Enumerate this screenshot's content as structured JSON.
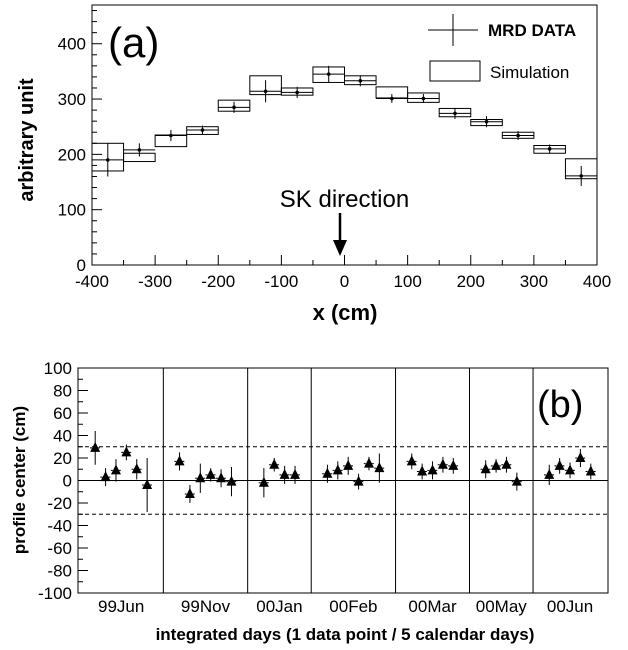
{
  "chart_data": [
    {
      "panel_label": "(a)",
      "type": "bar",
      "xlabel": "x (cm)",
      "ylabel": "arbitrary unit",
      "xlim": [
        -400,
        400
      ],
      "ylim": [
        0,
        470
      ],
      "x_ticks": [
        "-400",
        "-300",
        "-200",
        "-100",
        "0",
        "100",
        "200",
        "300",
        "400"
      ],
      "y_ticks": [
        "0",
        "100",
        "200",
        "300",
        "400"
      ],
      "bin_edges": [
        -400,
        -350,
        -300,
        -250,
        -200,
        -150,
        -100,
        -50,
        0,
        50,
        100,
        150,
        200,
        250,
        300,
        350,
        400
      ],
      "bin_centers": [
        -375,
        -325,
        -275,
        -225,
        -175,
        -125,
        -75,
        -25,
        25,
        75,
        125,
        175,
        225,
        275,
        325,
        375
      ],
      "series": [
        {
          "name": "MRD DATA",
          "style": "points with error bars",
          "values": [
            190,
            208,
            234,
            244,
            285,
            314,
            312,
            345,
            333,
            301,
            301,
            274,
            259,
            234,
            210,
            161
          ],
          "errors": [
            30,
            12,
            10,
            8,
            10,
            20,
            10,
            15,
            10,
            8,
            8,
            10,
            10,
            8,
            8,
            18
          ]
        },
        {
          "name": "Simulation",
          "style": "boxes",
          "low": [
            170,
            187,
            214,
            236,
            278,
            308,
            307,
            330,
            326,
            302,
            294,
            268,
            252,
            229,
            202,
            156
          ],
          "high": [
            220,
            202,
            235,
            250,
            298,
            342,
            320,
            358,
            342,
            322,
            311,
            283,
            263,
            240,
            216,
            192
          ]
        }
      ],
      "legend": {
        "position": "top-right",
        "entries": [
          "MRD DATA",
          "Simulation"
        ]
      },
      "annotation": {
        "text": "SK direction",
        "x": 0
      }
    },
    {
      "panel_label": "(b)",
      "type": "scatter",
      "xlabel": "integrated days (1 data point / 5 calendar days)",
      "ylabel": "profile center (cm)",
      "ylim": [
        -100,
        100
      ],
      "y_ticks": [
        "100",
        "80",
        "60",
        "40",
        "20",
        "0",
        "-20",
        "-40",
        "-60",
        "-80",
        "-100"
      ],
      "reference_lines": {
        "solid": [
          0
        ],
        "dashed": [
          30,
          -30
        ]
      },
      "groups": [
        {
          "label": "99Jun",
          "values": [
            29,
            3,
            9,
            25,
            10,
            -4
          ],
          "errors": [
            15,
            8,
            10,
            7,
            9,
            24
          ]
        },
        {
          "label": "99Nov",
          "values": [
            17,
            -12,
            2,
            5,
            2,
            -1
          ],
          "errors": [
            8,
            8,
            13,
            6,
            8,
            13
          ]
        },
        {
          "label": "00Jan",
          "values": [
            -2,
            14,
            5,
            5
          ],
          "errors": [
            13,
            6,
            8,
            8
          ]
        },
        {
          "label": "00Feb",
          "values": [
            6,
            9,
            13,
            -1,
            15,
            11
          ],
          "errors": [
            8,
            8,
            8,
            7,
            6,
            13
          ]
        },
        {
          "label": "00Mar",
          "values": [
            17,
            8,
            9,
            14,
            13
          ],
          "errors": [
            7,
            7,
            8,
            7,
            7
          ]
        },
        {
          "label": "00May",
          "values": [
            10,
            13,
            14,
            -1
          ],
          "errors": [
            8,
            6,
            7,
            8
          ]
        },
        {
          "label": "00Jun",
          "values": [
            5,
            13,
            9,
            20,
            8
          ],
          "errors": [
            9,
            7,
            7,
            8,
            7
          ]
        }
      ]
    }
  ]
}
